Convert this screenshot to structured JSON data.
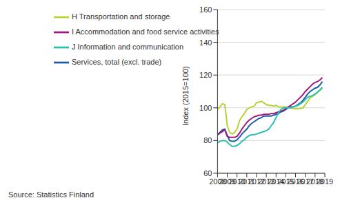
{
  "chart_data": {
    "type": "line",
    "y_label": "Index (2015=100)",
    "source": "Source: Statistics Finland",
    "x": [
      2008,
      2008.25,
      2008.5,
      2008.75,
      2009,
      2009.25,
      2009.5,
      2009.75,
      2010,
      2010.25,
      2010.5,
      2010.75,
      2011,
      2011.25,
      2011.5,
      2011.75,
      2012,
      2012.25,
      2012.5,
      2012.75,
      2013,
      2013.25,
      2013.5,
      2013.75,
      2014,
      2014.25,
      2014.5,
      2014.75,
      2015,
      2015.25,
      2015.5,
      2015.75,
      2016,
      2016.25,
      2016.5,
      2016.75,
      2017,
      2017.25,
      2017.5,
      2017.75,
      2018,
      2018.25,
      2018.5,
      2018.75
    ],
    "series": [
      {
        "name": "Services, total (excl. trade)",
        "color": "#1f5fa8",
        "values": [
          83.5,
          85,
          86.5,
          87,
          83,
          80,
          79.5,
          79.5,
          80.5,
          82,
          84,
          85.5,
          87,
          89,
          90.5,
          91.5,
          92.5,
          93.5,
          94,
          95,
          95,
          95,
          95,
          95.5,
          96,
          96.5,
          97.5,
          98,
          99,
          100,
          100.5,
          100.5,
          101,
          102,
          103,
          104.5,
          106.5,
          108.5,
          110,
          111,
          112,
          112.5,
          114,
          116
        ]
      },
      {
        "name": "H Transportation and storage",
        "color": "#b5d334",
        "values": [
          99,
          100.5,
          102.5,
          102,
          89,
          85,
          84,
          85,
          87,
          92,
          94.5,
          96.5,
          99,
          100,
          100.5,
          101,
          103,
          103.5,
          104,
          103,
          102,
          101.5,
          101.5,
          101,
          101.5,
          100.5,
          100.5,
          100.5,
          100.5,
          100,
          100,
          99.5,
          99.5,
          99.5,
          99.5,
          100,
          102,
          104,
          106,
          107,
          108,
          109.5,
          110.5,
          112
        ]
      },
      {
        "name": "I Accommodation and food service activities",
        "color": "#a3187e",
        "values": [
          83.5,
          84.5,
          85.5,
          86.5,
          82.5,
          82,
          82,
          82,
          82.5,
          84.5,
          87,
          89,
          91,
          92.5,
          93.5,
          94.5,
          95,
          95.5,
          95.5,
          96,
          96,
          96,
          96.5,
          96.5,
          97,
          97.5,
          98,
          98.5,
          99.5,
          100.5,
          101.5,
          102.5,
          103.5,
          105,
          106.5,
          108,
          110,
          111.5,
          113,
          114.5,
          115.5,
          116,
          117,
          118.5
        ]
      },
      {
        "name": "J Information and communication",
        "color": "#2bbfb0",
        "values": [
          78.5,
          79.5,
          80,
          80,
          79,
          77.5,
          76.5,
          76.5,
          77,
          78,
          79.5,
          80.5,
          82,
          83,
          83.5,
          83.5,
          84,
          84.5,
          85,
          85.5,
          86,
          87,
          89,
          91,
          94,
          97,
          99,
          100,
          100,
          100,
          100,
          100.5,
          101,
          101.5,
          102.5,
          103.5,
          105,
          106.5,
          107,
          107.5,
          108.5,
          109.5,
          111,
          112.5
        ]
      }
    ],
    "xlim": [
      2008,
      2019
    ],
    "xticks": [
      2008,
      2009,
      2010,
      2011,
      2012,
      2013,
      2014,
      2015,
      2016,
      2017,
      2018,
      2019
    ],
    "ylim": [
      60,
      160
    ],
    "yticks": [
      60,
      80,
      100,
      120,
      140,
      160
    ],
    "grid": true,
    "legend": "upper left"
  }
}
